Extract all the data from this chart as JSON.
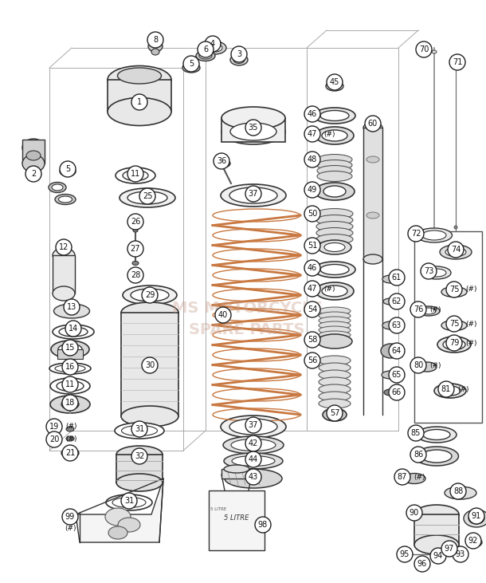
{
  "background_color": "#ffffff",
  "watermark_text": "MS MOTORCYCLE\nSPARE PARTS",
  "watermark_color": "#c8a090",
  "watermark_alpha": 0.4,
  "watermark_fontsize": 14,
  "fig_width": 6.1,
  "fig_height": 7.31,
  "dpi": 100
}
